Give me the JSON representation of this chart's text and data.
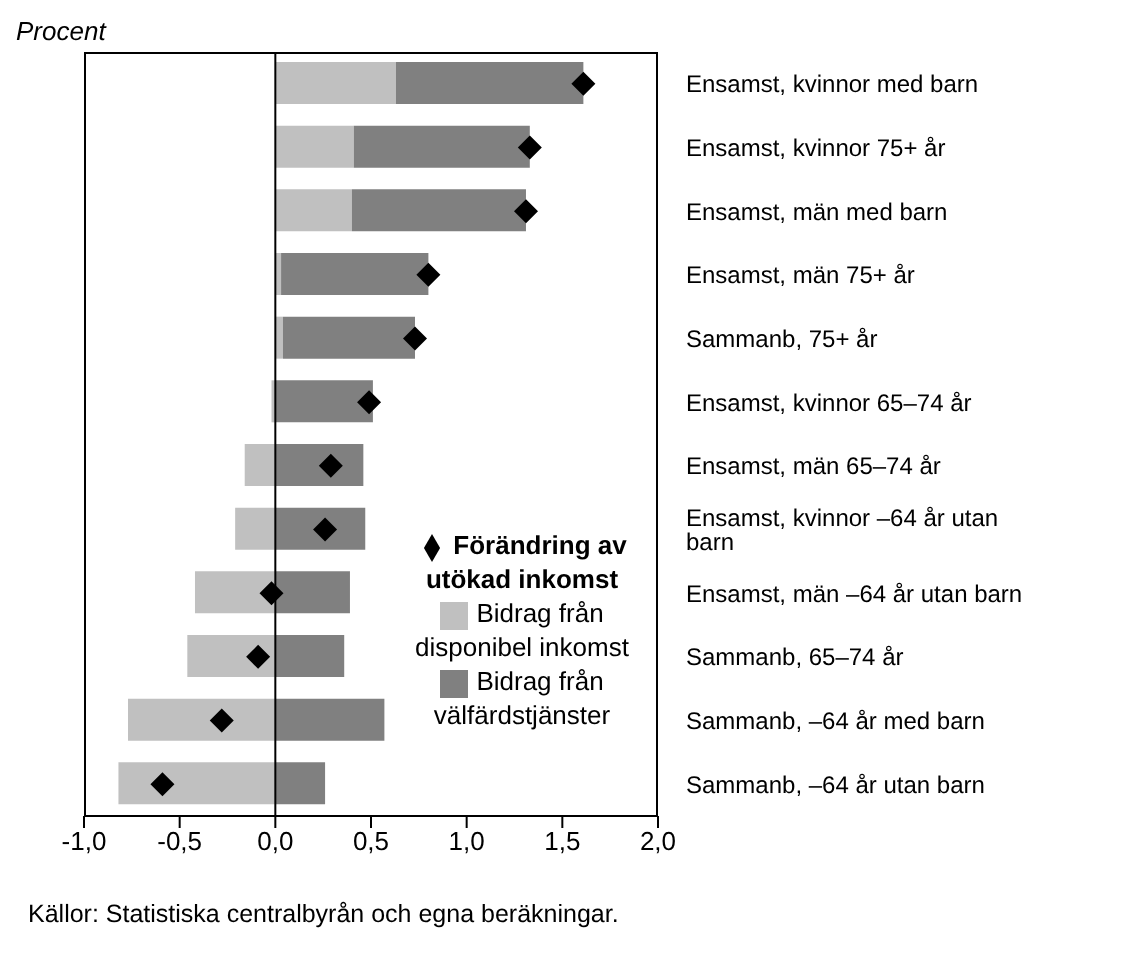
{
  "chart_data": {
    "type": "bar",
    "orientation": "horizontal",
    "stacked": true,
    "categories": [
      "Ensamst, kvinnor med barn",
      "Ensamst, kvinnor 75+ år",
      "Ensamst, män med barn",
      "Ensamst, män 75+ år",
      "Sammanb, 75+ år",
      "Ensamst, kvinnor 65–74 år",
      "Ensamst, män 65–74 år",
      "Ensamst, kvinnor –64 år utan barn",
      "Ensamst, män –64 år utan barn",
      "Sammanb, 65–74 år",
      "Sammanb, –64 år med barn",
      "Sammanb, –64 år utan barn"
    ],
    "series": [
      {
        "name": "Förändring av utökad inkomst",
        "type": "scatter",
        "marker": "diamond",
        "color": "#000000",
        "values": [
          1.61,
          1.33,
          1.31,
          0.8,
          0.73,
          0.49,
          0.29,
          0.26,
          -0.02,
          -0.09,
          -0.28,
          -0.59
        ]
      },
      {
        "name": "Bidrag från disponibel inkomst",
        "color": "#c0c0c0",
        "values": [
          0.63,
          0.41,
          0.4,
          0.03,
          0.04,
          -0.02,
          -0.16,
          -0.21,
          -0.42,
          -0.46,
          -0.77,
          -0.82
        ]
      },
      {
        "name": "Bidrag från välfärdstjänster",
        "color": "#808080",
        "values": [
          0.98,
          0.92,
          0.91,
          0.77,
          0.69,
          0.51,
          0.46,
          0.47,
          0.39,
          0.36,
          0.57,
          0.26
        ]
      }
    ],
    "xlim": [
      -1,
      2
    ],
    "xticks": [
      {
        "value": -1,
        "label": "-1,0"
      },
      {
        "value": -0.5,
        "label": "-0,5"
      },
      {
        "value": 0,
        "label": "0,0"
      },
      {
        "value": 0.5,
        "label": "0,5"
      },
      {
        "value": 1,
        "label": "1,0"
      },
      {
        "value": 1.5,
        "label": "1,5"
      },
      {
        "value": 2,
        "label": "2,0"
      }
    ],
    "ref_lines": [
      {
        "axis": "x",
        "value": 0,
        "color": "#000000"
      }
    ],
    "legend": "bottom right",
    "grid": false,
    "annotations": [
      "Procent",
      "Källor: Statistiska centralbyrån och egna beräkningar."
    ]
  }
}
